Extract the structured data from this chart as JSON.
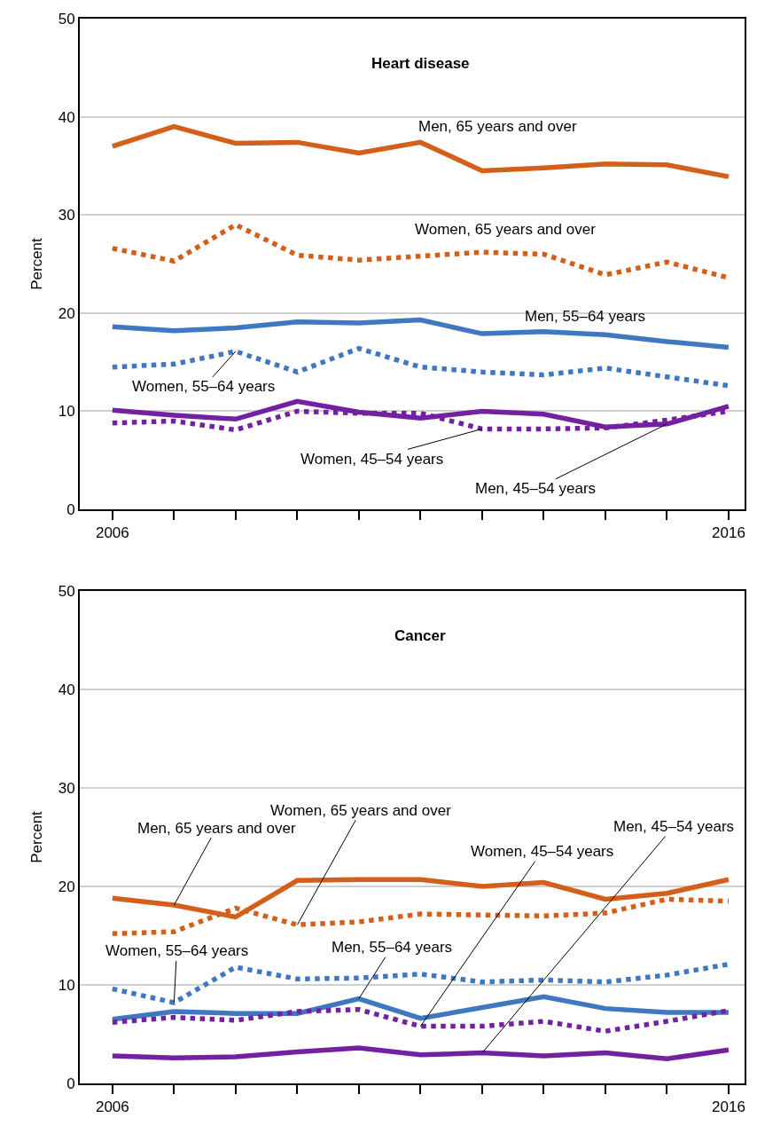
{
  "chart_data": [
    {
      "type": "line",
      "title": "Heart disease",
      "ylabel": "Percent",
      "x": [
        2006,
        2007,
        2008,
        2009,
        2010,
        2011,
        2012,
        2013,
        2014,
        2015,
        2016
      ],
      "xlim": [
        2005.47,
        2016.26
      ],
      "xticks": [
        2006,
        {
          "value": 2007,
          "label": null
        },
        {
          "value": 2008,
          "label": null
        },
        {
          "value": 2009,
          "label": null
        },
        {
          "value": 2010,
          "label": null
        },
        {
          "value": 2011,
          "label": null
        },
        {
          "value": 2012,
          "label": null
        },
        {
          "value": 2013,
          "label": null
        },
        {
          "value": 2014,
          "label": null
        },
        {
          "value": 2015,
          "label": null
        },
        2016
      ],
      "ylim": [
        0,
        50
      ],
      "yticks": [
        0,
        10,
        20,
        30,
        40,
        50
      ],
      "grid": "y",
      "legend": false,
      "marker": "none",
      "series": [
        {
          "name": "Men, 65 years and over",
          "color": "#d45f1b",
          "line_style": "solid",
          "values": [
            37.0,
            39.0,
            37.3,
            37.4,
            36.3,
            37.4,
            34.5,
            34.8,
            35.2,
            35.1,
            33.9
          ]
        },
        {
          "name": "Women, 65 years and over",
          "color": "#d45f1b",
          "line_style": "dotted",
          "values": [
            26.6,
            25.3,
            29.0,
            25.9,
            25.4,
            25.8,
            26.2,
            26.0,
            23.9,
            25.2,
            23.6
          ]
        },
        {
          "name": "Men, 55–64 years",
          "color": "#3f78c1",
          "line_style": "solid",
          "values": [
            18.6,
            18.2,
            18.5,
            19.1,
            19.0,
            19.3,
            17.9,
            18.1,
            17.8,
            17.1,
            16.5
          ]
        },
        {
          "name": "Women, 55–64 years",
          "color": "#3f78c1",
          "line_style": "dotted",
          "values": [
            14.5,
            14.8,
            16.1,
            14.0,
            16.4,
            14.5,
            14.0,
            13.7,
            14.4,
            13.5,
            12.6
          ]
        },
        {
          "name": "Men, 45–54 years",
          "color": "#7321a0",
          "line_style": "solid",
          "values": [
            10.1,
            9.6,
            9.2,
            11.0,
            9.9,
            9.3,
            10.0,
            9.7,
            8.4,
            8.7,
            10.5
          ]
        },
        {
          "name": "Women, 45–54 years",
          "color": "#7321a0",
          "line_style": "dotted",
          "values": [
            8.8,
            9.0,
            8.1,
            10.0,
            9.8,
            9.8,
            8.2,
            8.2,
            8.3,
            9.1,
            10.0
          ]
        }
      ]
    },
    {
      "type": "line",
      "title": "Cancer",
      "ylabel": "Percent",
      "x": [
        2006,
        2007,
        2008,
        2009,
        2010,
        2011,
        2012,
        2013,
        2014,
        2015,
        2016
      ],
      "xlim": [
        2005.47,
        2016.26
      ],
      "xticks": [
        2006,
        {
          "value": 2007,
          "label": null
        },
        {
          "value": 2008,
          "label": null
        },
        {
          "value": 2009,
          "label": null
        },
        {
          "value": 2010,
          "label": null
        },
        {
          "value": 2011,
          "label": null
        },
        {
          "value": 2012,
          "label": null
        },
        {
          "value": 2013,
          "label": null
        },
        {
          "value": 2014,
          "label": null
        },
        {
          "value": 2015,
          "label": null
        },
        2016
      ],
      "ylim": [
        0,
        50
      ],
      "yticks": [
        0,
        10,
        20,
        30,
        40,
        50
      ],
      "grid": "y",
      "legend": false,
      "marker": "none",
      "series": [
        {
          "name": "Men, 65 years and over",
          "color": "#d45f1b",
          "line_style": "solid",
          "values": [
            18.8,
            18.1,
            16.9,
            20.6,
            20.7,
            20.7,
            20.0,
            20.4,
            18.7,
            19.3,
            20.7
          ]
        },
        {
          "name": "Women, 65 years and over",
          "color": "#d45f1b",
          "line_style": "dotted",
          "values": [
            15.2,
            15.4,
            17.8,
            16.1,
            16.4,
            17.2,
            17.1,
            17.0,
            17.3,
            18.7,
            18.5
          ]
        },
        {
          "name": "Men, 55–64 years",
          "color": "#3f78c1",
          "line_style": "solid",
          "values": [
            6.5,
            7.3,
            7.1,
            7.1,
            8.6,
            6.6,
            7.7,
            8.8,
            7.6,
            7.2,
            7.2
          ]
        },
        {
          "name": "Women, 55–64 years",
          "color": "#3f78c1",
          "line_style": "dotted",
          "values": [
            9.6,
            8.2,
            11.8,
            10.6,
            10.7,
            11.1,
            10.3,
            10.5,
            10.3,
            11.0,
            12.1
          ]
        },
        {
          "name": "Men, 45–54 years",
          "color": "#7321a0",
          "line_style": "solid",
          "values": [
            2.8,
            2.6,
            2.7,
            3.2,
            3.6,
            2.9,
            3.1,
            2.8,
            3.1,
            2.5,
            3.4
          ]
        },
        {
          "name": "Women, 45–54 years",
          "color": "#7321a0",
          "line_style": "dotted",
          "values": [
            6.2,
            6.7,
            6.4,
            7.3,
            7.5,
            5.8,
            5.8,
            6.3,
            5.3,
            6.3,
            7.4
          ]
        }
      ]
    }
  ]
}
